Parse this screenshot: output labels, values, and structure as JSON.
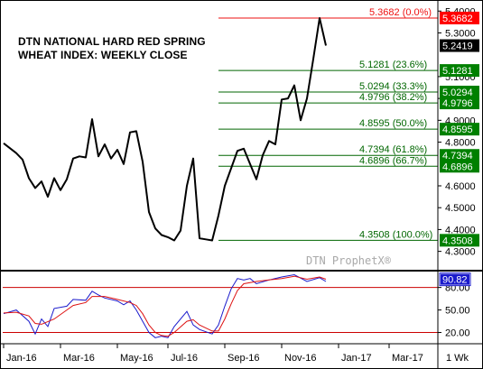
{
  "chart_data": [
    {
      "type": "line",
      "title": "DTN NATIONAL HARD RED SPRING WHEAT INDEX: WEEKLY CLOSE",
      "title_lines": [
        "DTN NATIONAL HARD RED SPRING",
        "WHEAT INDEX: WEEKLY CLOSE"
      ],
      "watermark": "DTN ProphetX®",
      "ylim": [
        4.22,
        5.43
      ],
      "y_ticks": [
        "5.4000",
        "5.3000",
        "5.1000",
        "5.0000",
        "4.9000",
        "4.8000",
        "4.6000",
        "4.5000",
        "4.4000",
        "4.3000"
      ],
      "y_tick_values": [
        5.4,
        5.3,
        5.1,
        5.0,
        4.9,
        4.8,
        4.6,
        4.5,
        4.4,
        4.3
      ],
      "x_tick_labels": [
        "Jan-16",
        "Mar-16",
        "May-16",
        "Jul-16",
        "Sep-16",
        "Nov-16",
        "Jan-17",
        "Mar-17"
      ],
      "x_tick_weeks": [
        0,
        9,
        18,
        26,
        35,
        44,
        53,
        61
      ],
      "timeframe_label": "1 Wk",
      "last_value": {
        "label": "5.2419",
        "value": 5.2419
      },
      "series": [
        {
          "weeks": [
            0,
            2,
            3,
            4,
            5,
            6,
            7,
            8,
            9,
            10,
            11,
            12,
            13,
            14,
            15,
            16,
            17,
            18,
            19,
            20,
            21,
            22,
            23,
            24,
            25,
            26,
            27,
            28,
            29,
            30,
            31,
            32,
            33,
            34,
            35,
            36,
            37,
            38,
            39,
            40,
            41,
            42,
            43,
            44,
            45,
            46,
            47,
            48,
            49,
            50,
            51
          ],
          "values": [
            4.795,
            4.75,
            4.72,
            4.635,
            4.59,
            4.62,
            4.55,
            4.635,
            4.58,
            4.63,
            4.725,
            4.735,
            4.73,
            4.905,
            4.735,
            4.79,
            4.725,
            4.765,
            4.7,
            4.845,
            4.85,
            4.71,
            4.48,
            4.405,
            4.375,
            4.365,
            4.35,
            4.395,
            4.6,
            4.725,
            4.36,
            4.355,
            4.35,
            4.465,
            4.6,
            4.68,
            4.76,
            4.77,
            4.7,
            4.63,
            4.74,
            4.805,
            4.79,
            4.995,
            5.0,
            5.06,
            4.9,
            5.0,
            5.18,
            5.3682,
            5.2419
          ]
        }
      ],
      "fib_levels": [
        {
          "label": "5.3682 (0.0%)",
          "value": 5.3682,
          "tag": "5.3682",
          "color": "#ee1111"
        },
        {
          "label": "5.1281 (23.6%)",
          "value": 5.1281,
          "tag": "5.1281",
          "color": "#006600"
        },
        {
          "label": "5.0294 (33.3%)",
          "value": 5.0294,
          "tag": "5.0294",
          "color": "#006600"
        },
        {
          "label": "4.9796 (38.2%)",
          "value": 4.9796,
          "tag": "4.9796",
          "color": "#006600"
        },
        {
          "label": "4.8595 (50.0%)",
          "value": 4.8595,
          "tag": "4.8595",
          "color": "#006600"
        },
        {
          "label": "4.7394 (61.8%)",
          "value": 4.7394,
          "tag": "4.7394",
          "color": "#006600"
        },
        {
          "label": "4.6896 (66.7%)",
          "value": 4.6896,
          "tag": "4.6896",
          "color": "#006600"
        },
        {
          "label": "4.3508 (100.0%)",
          "value": 4.3508,
          "tag": "4.3508",
          "color": "#006600"
        }
      ]
    },
    {
      "type": "line",
      "title": "",
      "ylim": [
        5,
        100
      ],
      "y_ticks": [
        "80.00",
        "50.00",
        "20.00"
      ],
      "y_tick_values": [
        80,
        50,
        20
      ],
      "reference_lines": [
        80,
        20
      ],
      "last_value": {
        "label": "90.82",
        "value": 90.82
      },
      "series": [
        {
          "color": "#1a1acc",
          "weeks": [
            0,
            2,
            4,
            5,
            6,
            7,
            8,
            10,
            11,
            13,
            14,
            15,
            16,
            18,
            19,
            20,
            21,
            22,
            23,
            24,
            25,
            26,
            27,
            29,
            30,
            31,
            33,
            34,
            35,
            36,
            37,
            38,
            39,
            40,
            42,
            44,
            46,
            48,
            50,
            51
          ],
          "values": [
            45,
            50,
            35,
            18,
            38,
            28,
            52,
            55,
            64,
            63,
            75,
            70,
            66,
            62,
            57,
            62,
            50,
            35,
            20,
            13,
            15,
            13,
            28,
            48,
            30,
            24,
            18,
            30,
            55,
            78,
            92,
            90,
            92,
            85,
            90,
            94,
            97,
            88,
            93,
            88
          ]
        },
        {
          "color": "#dd1111",
          "weeks": [
            0,
            2,
            4,
            5,
            6,
            8,
            10,
            11,
            13,
            14,
            16,
            18,
            20,
            21,
            22,
            23,
            24,
            25,
            26,
            27,
            29,
            30,
            31,
            33,
            34,
            35,
            36,
            37,
            38,
            40,
            42,
            44,
            46,
            48,
            50,
            51
          ],
          "values": [
            46,
            47,
            42,
            32,
            31,
            38,
            50,
            56,
            60,
            68,
            68,
            64,
            60,
            56,
            45,
            30,
            20,
            16,
            15,
            20,
            35,
            37,
            30,
            22,
            22,
            38,
            58,
            76,
            85,
            88,
            90,
            92,
            95,
            91,
            94,
            91
          ]
        }
      ]
    }
  ]
}
